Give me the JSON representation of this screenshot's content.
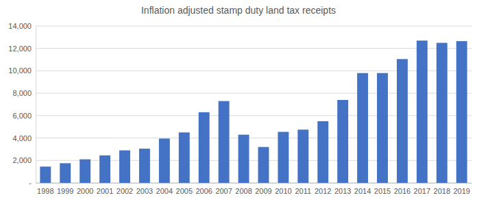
{
  "chart_data": {
    "type": "bar",
    "title": "Inflation adjusted stamp duty land tax receipts",
    "categories": [
      "1998",
      "1999",
      "2000",
      "2001",
      "2002",
      "2003",
      "2004",
      "2005",
      "2006",
      "2007",
      "2008",
      "2009",
      "2010",
      "2011",
      "2012",
      "2013",
      "2014",
      "2015",
      "2016",
      "2017",
      "2018",
      "2019"
    ],
    "values": [
      1450,
      1750,
      2100,
      2450,
      2900,
      3050,
      3950,
      4500,
      6300,
      7300,
      4300,
      3200,
      4550,
      4750,
      5500,
      7400,
      9800,
      9800,
      11050,
      12700,
      12500,
      12650
    ],
    "color": "#4472c4",
    "ylim": [
      0,
      14000
    ],
    "yticks": [
      {
        "value": 0,
        "label": "-"
      },
      {
        "value": 2000,
        "label": "2,000"
      },
      {
        "value": 4000,
        "label": "4,000"
      },
      {
        "value": 6000,
        "label": "6,000"
      },
      {
        "value": 8000,
        "label": "8,000"
      },
      {
        "value": 10000,
        "label": "10,000"
      },
      {
        "value": 12000,
        "label": "12,000"
      },
      {
        "value": 14000,
        "label": "14,000"
      }
    ],
    "grid": true
  }
}
